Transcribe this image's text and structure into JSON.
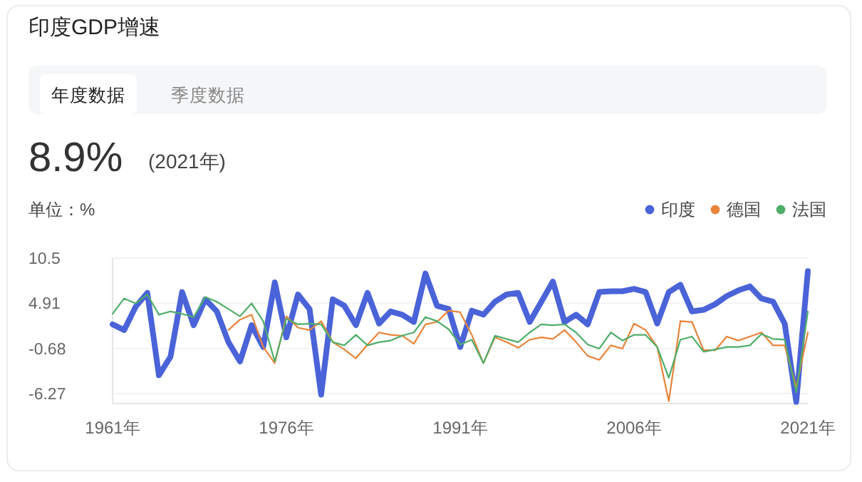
{
  "chart_data": {
    "type": "line",
    "title": "印度GDP增速",
    "annotations": [
      "年度数据",
      "季度数据",
      "8.9%",
      "(2021年)"
    ],
    "ylabel": "单位：%",
    "x": [
      1961,
      1962,
      1963,
      1964,
      1965,
      1966,
      1967,
      1968,
      1969,
      1970,
      1971,
      1972,
      1973,
      1974,
      1975,
      1976,
      1977,
      1978,
      1979,
      1980,
      1981,
      1982,
      1983,
      1984,
      1985,
      1986,
      1987,
      1988,
      1989,
      1990,
      1991,
      1992,
      1993,
      1994,
      1995,
      1996,
      1997,
      1998,
      1999,
      2000,
      2001,
      2002,
      2003,
      2004,
      2005,
      2006,
      2007,
      2008,
      2009,
      2010,
      2011,
      2012,
      2013,
      2014,
      2015,
      2016,
      2017,
      2018,
      2019,
      2020,
      2021
    ],
    "series": [
      {
        "name": "印度",
        "color": "#4a63d8",
        "values": [
          2.3,
          1.6,
          4.5,
          6.2,
          -4.0,
          -1.7,
          6.3,
          2.2,
          5.4,
          3.9,
          0.1,
          -2.3,
          2.2,
          -0.5,
          7.5,
          0.7,
          6.0,
          4.2,
          -6.4,
          5.4,
          4.6,
          2.2,
          6.2,
          2.4,
          3.9,
          3.5,
          2.6,
          8.6,
          4.6,
          4.2,
          -0.5,
          4.0,
          3.5,
          5.1,
          6.0,
          6.2,
          2.6,
          5.1,
          7.6,
          2.6,
          3.5,
          2.3,
          6.3,
          6.4,
          6.4,
          6.7,
          6.3,
          2.4,
          6.3,
          7.2,
          3.9,
          4.1,
          4.8,
          5.8,
          6.5,
          7.0,
          5.5,
          5.1,
          2.4,
          -7.3,
          8.9
        ]
      },
      {
        "name": "德国",
        "color": "#e8843a",
        "values": [
          null,
          null,
          null,
          null,
          null,
          null,
          null,
          null,
          null,
          null,
          1.6,
          2.9,
          3.5,
          -0.5,
          -2.5,
          3.3,
          1.9,
          1.6,
          2.7,
          0.1,
          -0.8,
          -1.9,
          -0.2,
          1.3,
          1.0,
          0.9,
          -0.1,
          2.3,
          2.6,
          4.0,
          3.8,
          1.0,
          -2.5,
          0.7,
          0.1,
          -0.6,
          0.4,
          0.7,
          0.5,
          1.6,
          0.1,
          -1.6,
          -2.1,
          -0.3,
          -0.7,
          2.4,
          1.6,
          -0.5,
          -7.2,
          2.7,
          2.6,
          -0.9,
          -0.9,
          0.8,
          0.3,
          0.8,
          1.3,
          -0.3,
          -0.3,
          -5.5,
          1.3
        ]
      },
      {
        "name": "法国",
        "color": "#4fae6a",
        "values": [
          3.6,
          5.5,
          4.9,
          6.0,
          3.5,
          3.9,
          3.6,
          3.2,
          5.7,
          5.1,
          4.2,
          3.3,
          4.9,
          2.7,
          -2.3,
          3.0,
          2.3,
          2.4,
          2.3,
          0.1,
          -0.3,
          1.0,
          -0.3,
          0.1,
          0.3,
          0.9,
          1.3,
          3.2,
          2.7,
          1.7,
          -0.2,
          0.4,
          -2.5,
          0.9,
          0.5,
          0.1,
          1.3,
          2.3,
          2.2,
          2.3,
          1.3,
          -0.2,
          -0.7,
          1.3,
          0.3,
          1.0,
          1.0,
          -0.5,
          -4.3,
          0.4,
          0.8,
          -1.1,
          -0.8,
          -0.5,
          -0.5,
          -0.3,
          1.1,
          0.5,
          0.4,
          -6.1,
          3.9
        ]
      }
    ],
    "xlim": [
      1961,
      2021
    ],
    "xticks": [
      {
        "value": 1961,
        "label": "1961年"
      },
      {
        "value": 1976,
        "label": "1976年"
      },
      {
        "value": 1991,
        "label": "1991年"
      },
      {
        "value": 2006,
        "label": "2006年"
      },
      {
        "value": 2021,
        "label": "2021年"
      }
    ],
    "ylim": [
      -7.5,
      10.5
    ],
    "yticks": [
      -6.27,
      -0.68,
      4.91,
      10.5
    ],
    "grid": "y",
    "legend": "top right",
    "marker": "none",
    "line_style": "solid"
  }
}
